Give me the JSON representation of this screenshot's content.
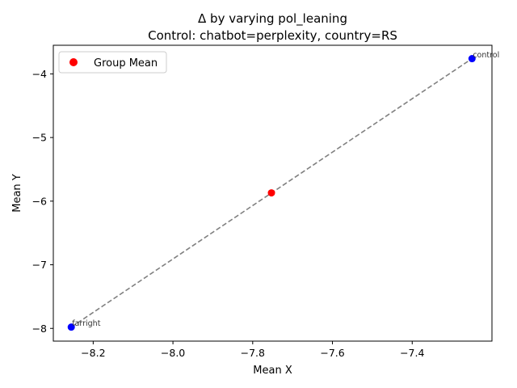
{
  "chart_data": {
    "type": "scatter",
    "title_line1": "Δ by varying pol_leaning",
    "title_line2": "Control: chatbot=perplexity, country=RS",
    "xlabel": "Mean X",
    "ylabel": "Mean Y",
    "xlim": [
      -8.3,
      -7.2
    ],
    "ylim": [
      -8.2,
      -3.55
    ],
    "xticks": [
      -8.2,
      -8.0,
      -7.8,
      -7.6,
      -7.4
    ],
    "xtick_labels": [
      "−8.2",
      "−8.0",
      "−7.8",
      "−7.6",
      "−7.4"
    ],
    "yticks": [
      -8,
      -7,
      -6,
      -5,
      -4
    ],
    "ytick_labels": [
      "−8",
      "−7",
      "−6",
      "−5",
      "−4"
    ],
    "points": [
      {
        "label": "farright",
        "x": -8.255,
        "y": -7.98,
        "color": "#0000ff"
      },
      {
        "label": "control",
        "x": -7.25,
        "y": -3.76,
        "color": "#0000ff"
      }
    ],
    "group_mean": {
      "x": -7.753,
      "y": -5.87,
      "color": "#ff0000"
    },
    "line": {
      "color": "#808080",
      "style": "dashed"
    },
    "legend": {
      "entries": [
        "Group Mean"
      ],
      "placement": "top-left"
    },
    "grid": false
  }
}
